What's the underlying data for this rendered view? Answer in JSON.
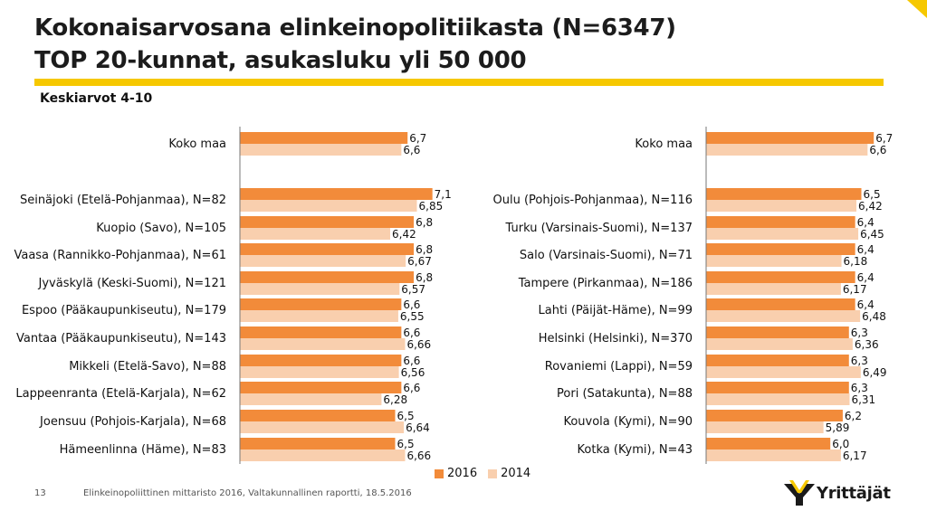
{
  "header": {
    "title_line1": "Kokonaisarvosana elinkeinopolitiikasta (N=6347)",
    "title_line2": "TOP 20-kunnat, asukasluku yli 50 000",
    "subtitle": "Keskiarvot 4-10"
  },
  "colors": {
    "accent_yellow": "#F6C800",
    "series_2016": "#F28B3A",
    "series_2014": "#F9CFAE",
    "axis_line": "#777777"
  },
  "chart_data": [
    {
      "type": "bar",
      "orientation": "horizontal",
      "xlim": [
        4,
        10
      ],
      "categories": [
        "Koko maa",
        "Seinäjoki (Etelä-Pohjanmaa), N=82",
        "Kuopio (Savo), N=105",
        "Vaasa (Rannikko-Pohjanmaa), N=61",
        "Jyväskylä (Keski-Suomi), N=121",
        "Espoo (Pääkaupunkiseutu), N=179",
        "Vantaa (Pääkaupunkiseutu), N=143",
        "Mikkeli (Etelä-Savo), N=88",
        "Lappeenranta (Etelä-Karjala), N=62",
        "Joensuu (Pohjois-Karjala), N=68",
        "Hämeenlinna (Häme), N=83"
      ],
      "series": [
        {
          "name": "2016",
          "values": [
            6.7,
            7.1,
            6.8,
            6.8,
            6.8,
            6.6,
            6.6,
            6.6,
            6.6,
            6.5,
            6.5
          ],
          "labels": [
            "6,7",
            "7,1",
            "6,8",
            "6,8",
            "6,8",
            "6,6",
            "6,6",
            "6,6",
            "6,6",
            "6,5",
            "6,5"
          ]
        },
        {
          "name": "2014",
          "values": [
            6.6,
            6.85,
            6.42,
            6.67,
            6.57,
            6.55,
            6.66,
            6.56,
            6.28,
            6.64,
            6.66
          ],
          "labels": [
            "6,6",
            "6,85",
            "6,42",
            "6,67",
            "6,57",
            "6,55",
            "6,66",
            "6,56",
            "6,28",
            "6,64",
            "6,66"
          ]
        }
      ]
    },
    {
      "type": "bar",
      "orientation": "horizontal",
      "xlim": [
        4,
        10
      ],
      "categories": [
        "Koko maa",
        "Oulu (Pohjois-Pohjanmaa), N=116",
        "Turku (Varsinais-Suomi), N=137",
        "Salo (Varsinais-Suomi), N=71",
        "Tampere (Pirkanmaa), N=186",
        "Lahti (Päijät-Häme), N=99",
        "Helsinki (Helsinki), N=370",
        "Rovaniemi (Lappi), N=59",
        "Pori (Satakunta), N=88",
        "Kouvola (Kymi), N=90",
        "Kotka (Kymi), N=43"
      ],
      "series": [
        {
          "name": "2016",
          "values": [
            6.7,
            6.5,
            6.4,
            6.4,
            6.4,
            6.4,
            6.3,
            6.3,
            6.3,
            6.2,
            6.0
          ],
          "labels": [
            "6,7",
            "6,5",
            "6,4",
            "6,4",
            "6,4",
            "6,4",
            "6,3",
            "6,3",
            "6,3",
            "6,2",
            "6,0"
          ]
        },
        {
          "name": "2014",
          "values": [
            6.6,
            6.42,
            6.45,
            6.18,
            6.17,
            6.48,
            6.36,
            6.49,
            6.31,
            5.89,
            6.17
          ],
          "labels": [
            "6,6",
            "6,42",
            "6,45",
            "6,18",
            "6,17",
            "6,48",
            "6,36",
            "6,49",
            "6,31",
            "5,89",
            "6,17"
          ]
        }
      ]
    }
  ],
  "legend": {
    "items": [
      {
        "label": "2016"
      },
      {
        "label": "2014"
      }
    ]
  },
  "footer": {
    "page_number": "13",
    "source": "Elinkeinopoliittinen mittaristo 2016, Valtakunnallinen raportti, 18.5.2016",
    "logo_text": "Yrittäjät"
  }
}
